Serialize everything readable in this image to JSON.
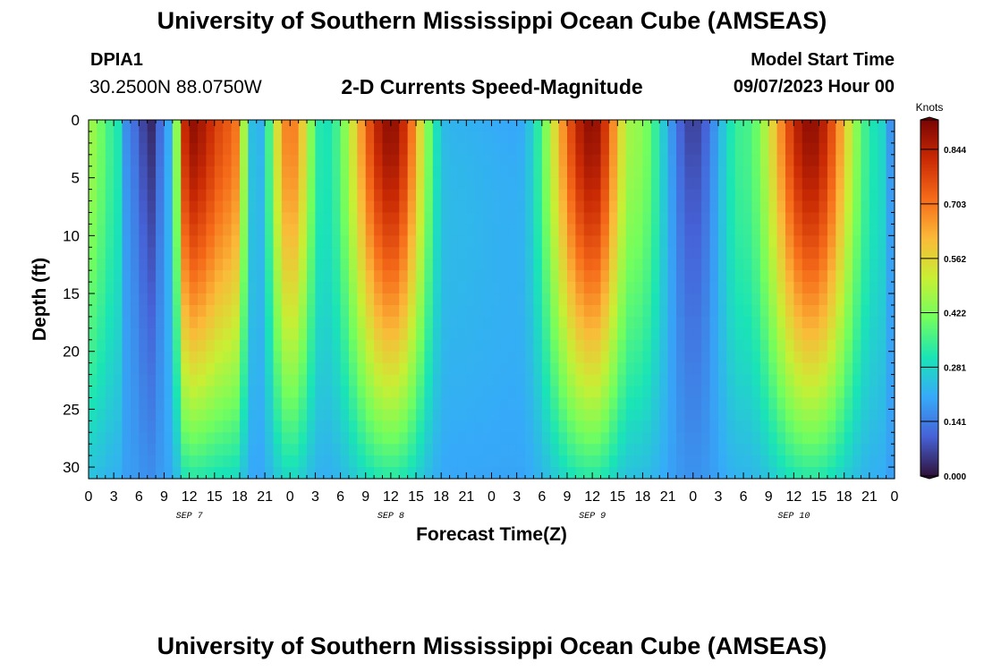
{
  "header": {
    "title": "University of Southern Mississippi Ocean Cube (AMSEAS)",
    "station": "DPIA1",
    "coordinates": "30.2500N  88.0750W",
    "plot_title": "2-D Currents Speed-Magnitude",
    "model_start_label": "Model Start Time",
    "model_start_value": "09/07/2023 Hour 00"
  },
  "footer": {
    "title": "University of Southern Mississippi Ocean Cube (AMSEAS)"
  },
  "colors": {
    "text": "#000000",
    "background": "#ffffff",
    "colormap": [
      "#30123b",
      "#4662d7",
      "#36aaf9",
      "#1ae4b6",
      "#72fe5e",
      "#c8ef34",
      "#faba39",
      "#f66b19",
      "#ca2a04",
      "#7a0403"
    ]
  },
  "chart_data": {
    "type": "heatmap",
    "title": "2-D Currents Speed-Magnitude",
    "xlabel": "Forecast Time(Z)",
    "ylabel": "Depth (ft)",
    "x_ticks": [
      "0",
      "3",
      "6",
      "9",
      "12",
      "15",
      "18",
      "21",
      "0",
      "3",
      "6",
      "9",
      "12",
      "15",
      "18",
      "21",
      "0",
      "3",
      "6",
      "9",
      "12",
      "15",
      "18",
      "21",
      "0",
      "3",
      "6",
      "9",
      "12",
      "15",
      "18",
      "21",
      "0"
    ],
    "x_range_hours": [
      0,
      96
    ],
    "day_labels": [
      {
        "label": "SEP 7",
        "hour": 12
      },
      {
        "label": "SEP 8",
        "hour": 36
      },
      {
        "label": "SEP 9",
        "hour": 60
      },
      {
        "label": "SEP 10",
        "hour": 84
      }
    ],
    "y_ticks": [
      0,
      5,
      10,
      15,
      20,
      25,
      30
    ],
    "ylim": [
      0,
      31
    ],
    "y_inverted": true,
    "colorbar": {
      "units": "Knots",
      "ticks": [
        "0.000",
        "0.141",
        "0.281",
        "0.422",
        "0.562",
        "0.703",
        "0.844"
      ],
      "range": [
        0,
        0.92
      ]
    },
    "surface_speed_profile_knots": [
      {
        "hour": 0,
        "speed": 0.46
      },
      {
        "hour": 3,
        "speed": 0.34
      },
      {
        "hour": 5,
        "speed": 0.13
      },
      {
        "hour": 7.5,
        "speed": 0.03
      },
      {
        "hour": 9.5,
        "speed": 0.2
      },
      {
        "hour": 12,
        "speed": 0.89
      },
      {
        "hour": 17,
        "speed": 0.74
      },
      {
        "hour": 20,
        "speed": 0.2
      },
      {
        "hour": 24,
        "speed": 0.7
      },
      {
        "hour": 28,
        "speed": 0.3
      },
      {
        "hour": 36,
        "speed": 0.89
      },
      {
        "hour": 43,
        "speed": 0.22
      },
      {
        "hour": 51,
        "speed": 0.2
      },
      {
        "hour": 60,
        "speed": 0.89
      },
      {
        "hour": 65,
        "speed": 0.45
      },
      {
        "hour": 72,
        "speed": 0.06
      },
      {
        "hour": 78,
        "speed": 0.35
      },
      {
        "hour": 86,
        "speed": 0.89
      },
      {
        "hour": 94,
        "speed": 0.3
      },
      {
        "hour": 96,
        "speed": 0.15
      }
    ]
  }
}
